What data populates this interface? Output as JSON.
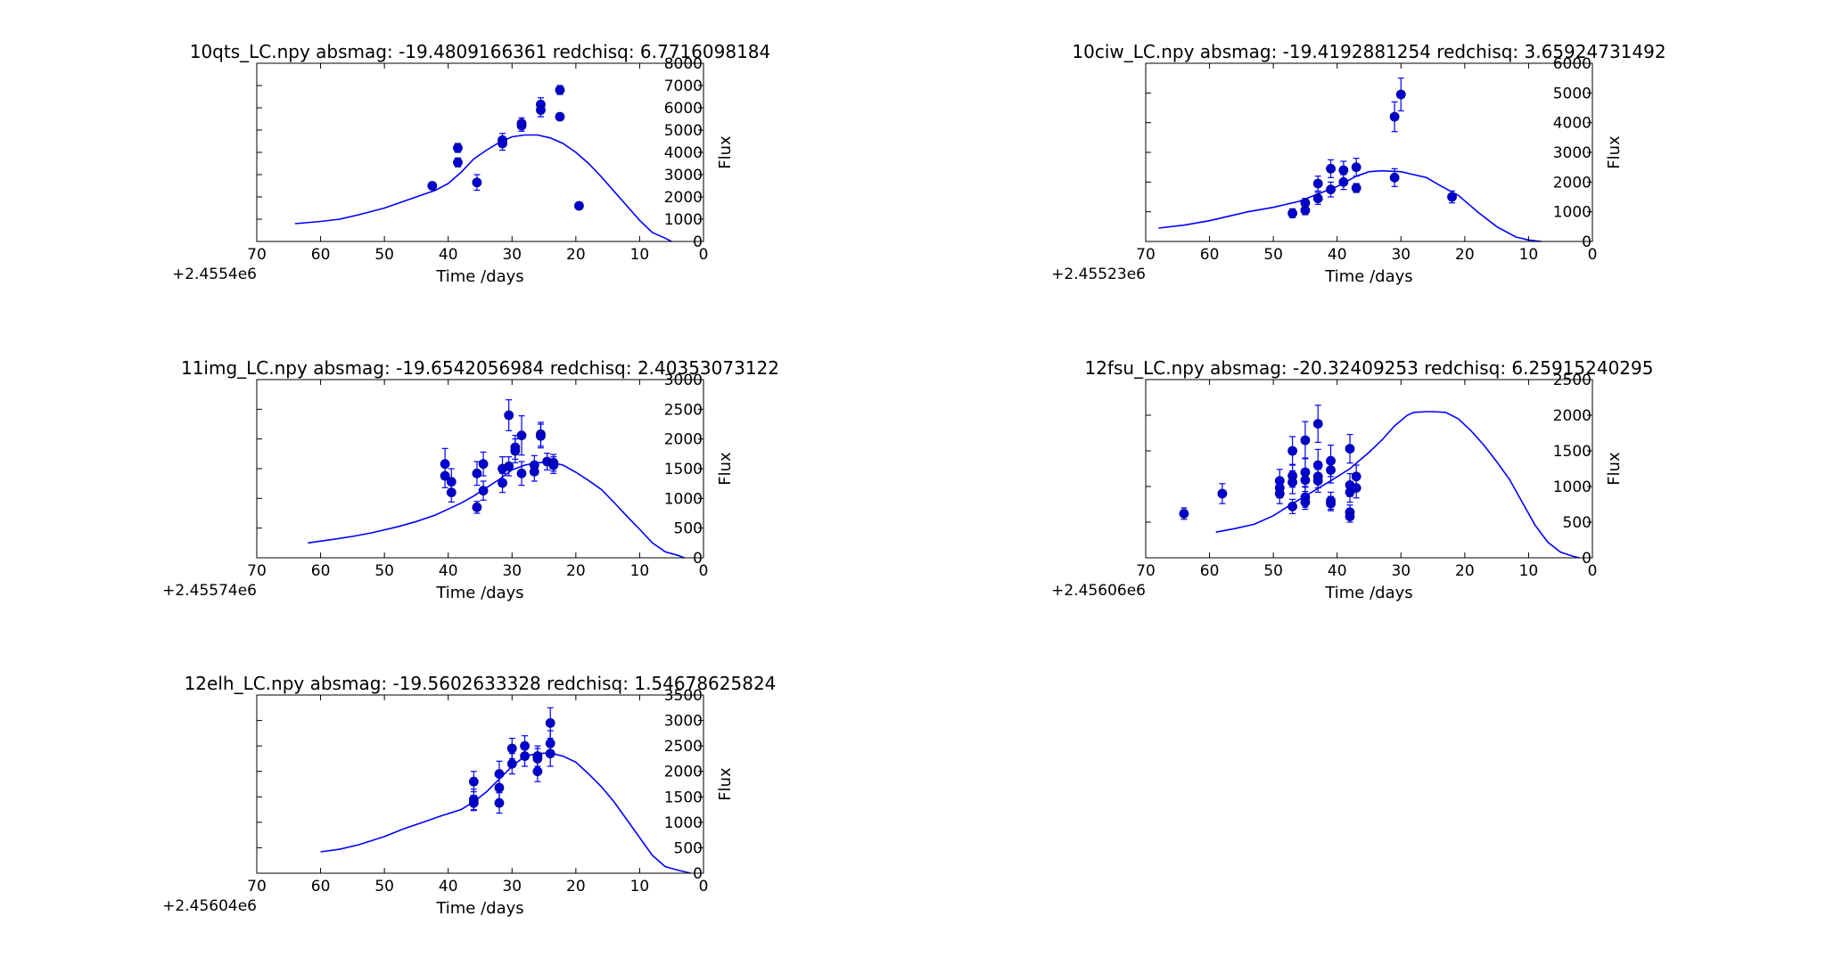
{
  "colors": {
    "line": "#0000ff",
    "marker": "#0000cc",
    "marker_edge": "#00008b",
    "axes": "#000000"
  },
  "chart_data": [
    {
      "type": "scatter",
      "title": "10qts_LC.npy absmag: -19.4809166361 redchisq: 6.7716098184",
      "xlabel": "Time /days",
      "ylabel": "Flux",
      "x_offset_label": "+2.4554e6",
      "xlim": [
        70,
        0
      ],
      "ylim": [
        0,
        8000
      ],
      "xticks": [
        "70",
        "60",
        "50",
        "40",
        "30",
        "20",
        "10",
        "0"
      ],
      "yticks": [
        "0",
        "1000",
        "2000",
        "3000",
        "4000",
        "5000",
        "6000",
        "7000",
        "8000"
      ],
      "observations": [
        {
          "x": 42.5,
          "y": 2500,
          "err": 150
        },
        {
          "x": 38.5,
          "y": 4200,
          "err": 200
        },
        {
          "x": 38.5,
          "y": 3550,
          "err": 200
        },
        {
          "x": 35.5,
          "y": 2650,
          "err": 350
        },
        {
          "x": 31.5,
          "y": 4550,
          "err": 300
        },
        {
          "x": 31.5,
          "y": 4400,
          "err": 300
        },
        {
          "x": 28.5,
          "y": 5200,
          "err": 250
        },
        {
          "x": 28.5,
          "y": 5300,
          "err": 250
        },
        {
          "x": 25.5,
          "y": 6150,
          "err": 300
        },
        {
          "x": 25.5,
          "y": 5900,
          "err": 300
        },
        {
          "x": 22.5,
          "y": 6800,
          "err": 200
        },
        {
          "x": 22.5,
          "y": 5600,
          "err": 150
        },
        {
          "x": 19.5,
          "y": 1600,
          "err": 100
        }
      ],
      "model": {
        "x": [
          64,
          60,
          57,
          54,
          50,
          47,
          45,
          42,
          40,
          38,
          36,
          34,
          32,
          30,
          28,
          26,
          24,
          22,
          20,
          18,
          16,
          14,
          12,
          10,
          8,
          6,
          5
        ],
        "y": [
          800,
          900,
          1000,
          1200,
          1500,
          1800,
          2000,
          2300,
          2600,
          3100,
          3700,
          4100,
          4450,
          4700,
          4780,
          4780,
          4650,
          4400,
          4000,
          3500,
          2900,
          2250,
          1600,
          950,
          400,
          150,
          0
        ]
      }
    },
    {
      "type": "scatter",
      "title": "10ciw_LC.npy absmag: -19.4192881254 redchisq: 3.65924731492",
      "xlabel": "Time /days",
      "ylabel": "Flux",
      "x_offset_label": "+2.45523e6",
      "xlim": [
        70,
        0
      ],
      "ylim": [
        0,
        6000
      ],
      "xticks": [
        "70",
        "60",
        "50",
        "40",
        "30",
        "20",
        "10",
        "0"
      ],
      "yticks": [
        "0",
        "1000",
        "2000",
        "3000",
        "4000",
        "5000",
        "6000"
      ],
      "observations": [
        {
          "x": 47,
          "y": 950,
          "err": 150
        },
        {
          "x": 45,
          "y": 1050,
          "err": 150
        },
        {
          "x": 45,
          "y": 1300,
          "err": 150
        },
        {
          "x": 43,
          "y": 1450,
          "err": 200
        },
        {
          "x": 43,
          "y": 1950,
          "err": 250
        },
        {
          "x": 41,
          "y": 1750,
          "err": 250
        },
        {
          "x": 41,
          "y": 2450,
          "err": 300
        },
        {
          "x": 39,
          "y": 2000,
          "err": 250
        },
        {
          "x": 39,
          "y": 2400,
          "err": 300
        },
        {
          "x": 37,
          "y": 1800,
          "err": 150
        },
        {
          "x": 37,
          "y": 2500,
          "err": 300
        },
        {
          "x": 31,
          "y": 4200,
          "err": 500
        },
        {
          "x": 31,
          "y": 2150,
          "err": 300
        },
        {
          "x": 30,
          "y": 4950,
          "err": 550
        },
        {
          "x": 22,
          "y": 1500,
          "err": 200
        }
      ],
      "model": {
        "x": [
          68,
          64,
          60,
          57,
          54,
          50,
          46,
          43,
          40,
          37,
          35,
          33,
          30,
          28,
          26,
          24,
          21,
          18,
          15,
          12,
          10,
          8
        ],
        "y": [
          450,
          550,
          700,
          850,
          1000,
          1150,
          1350,
          1600,
          1850,
          2200,
          2350,
          2380,
          2350,
          2250,
          2150,
          1900,
          1550,
          1000,
          500,
          150,
          50,
          0
        ]
      }
    },
    {
      "type": "scatter",
      "title": "11img_LC.npy absmag: -19.6542056984 redchisq: 2.40353073122",
      "xlabel": "Time /days",
      "ylabel": "Flux",
      "x_offset_label": "+2.45574e6",
      "xlim": [
        70,
        0
      ],
      "ylim": [
        0,
        3000
      ],
      "xticks": [
        "70",
        "60",
        "50",
        "40",
        "30",
        "20",
        "10",
        "0"
      ],
      "yticks": [
        "0",
        "500",
        "1000",
        "1500",
        "2000",
        "2500",
        "3000"
      ],
      "observations": [
        {
          "x": 40.5,
          "y": 1580,
          "err": 260
        },
        {
          "x": 40.5,
          "y": 1380,
          "err": 200
        },
        {
          "x": 39.5,
          "y": 1280,
          "err": 220
        },
        {
          "x": 39.5,
          "y": 1100,
          "err": 160
        },
        {
          "x": 35.5,
          "y": 1420,
          "err": 200
        },
        {
          "x": 35.5,
          "y": 850,
          "err": 100
        },
        {
          "x": 34.5,
          "y": 1580,
          "err": 200
        },
        {
          "x": 34.5,
          "y": 1130,
          "err": 160
        },
        {
          "x": 31.5,
          "y": 1260,
          "err": 160
        },
        {
          "x": 31.5,
          "y": 1500,
          "err": 200
        },
        {
          "x": 30.5,
          "y": 2400,
          "err": 260
        },
        {
          "x": 30.5,
          "y": 1540,
          "err": 160
        },
        {
          "x": 29.5,
          "y": 1860,
          "err": 200
        },
        {
          "x": 29.5,
          "y": 1800,
          "err": 200
        },
        {
          "x": 28.5,
          "y": 2060,
          "err": 330
        },
        {
          "x": 28.5,
          "y": 1420,
          "err": 200
        },
        {
          "x": 26.5,
          "y": 1560,
          "err": 160
        },
        {
          "x": 26.5,
          "y": 1450,
          "err": 160
        },
        {
          "x": 25.5,
          "y": 2080,
          "err": 200
        },
        {
          "x": 25.5,
          "y": 2050,
          "err": 200
        },
        {
          "x": 24.5,
          "y": 1620,
          "err": 140
        },
        {
          "x": 23.5,
          "y": 1600,
          "err": 140
        },
        {
          "x": 23.5,
          "y": 1560,
          "err": 140
        }
      ],
      "model": {
        "x": [
          62,
          58,
          55,
          52,
          48,
          45,
          42,
          40,
          38,
          36,
          34,
          32,
          30,
          28,
          26,
          24,
          22,
          20,
          18,
          16,
          14,
          12,
          10,
          8,
          6,
          4,
          3
        ],
        "y": [
          250,
          310,
          360,
          420,
          520,
          610,
          720,
          820,
          920,
          1040,
          1180,
          1320,
          1480,
          1560,
          1600,
          1610,
          1560,
          1440,
          1300,
          1150,
          930,
          700,
          480,
          250,
          100,
          40,
          0
        ]
      }
    },
    {
      "type": "scatter",
      "title": "12fsu_LC.npy absmag: -20.32409253 redchisq: 6.25915240295",
      "xlabel": "Time /days",
      "ylabel": "Flux",
      "x_offset_label": "+2.45606e6",
      "xlim": [
        70,
        0
      ],
      "ylim": [
        0,
        2500
      ],
      "xticks": [
        "70",
        "60",
        "50",
        "40",
        "30",
        "20",
        "10",
        "0"
      ],
      "yticks": [
        "0",
        "500",
        "1000",
        "1500",
        "2000",
        "2500"
      ],
      "observations": [
        {
          "x": 64,
          "y": 620,
          "err": 80
        },
        {
          "x": 58,
          "y": 900,
          "err": 140
        },
        {
          "x": 49,
          "y": 1080,
          "err": 160
        },
        {
          "x": 49,
          "y": 980,
          "err": 140
        },
        {
          "x": 49,
          "y": 900,
          "err": 140
        },
        {
          "x": 47,
          "y": 1500,
          "err": 200
        },
        {
          "x": 47,
          "y": 1150,
          "err": 160
        },
        {
          "x": 47,
          "y": 1060,
          "err": 160
        },
        {
          "x": 47,
          "y": 720,
          "err": 100
        },
        {
          "x": 45,
          "y": 1650,
          "err": 260
        },
        {
          "x": 45,
          "y": 1200,
          "err": 200
        },
        {
          "x": 45,
          "y": 1090,
          "err": 160
        },
        {
          "x": 45,
          "y": 850,
          "err": 140
        },
        {
          "x": 45,
          "y": 780,
          "err": 100
        },
        {
          "x": 43,
          "y": 1880,
          "err": 260
        },
        {
          "x": 43,
          "y": 1300,
          "err": 220
        },
        {
          "x": 43,
          "y": 1140,
          "err": 160
        },
        {
          "x": 43,
          "y": 1080,
          "err": 160
        },
        {
          "x": 41,
          "y": 1360,
          "err": 220
        },
        {
          "x": 41,
          "y": 1230,
          "err": 180
        },
        {
          "x": 41,
          "y": 800,
          "err": 120
        },
        {
          "x": 41,
          "y": 760,
          "err": 100
        },
        {
          "x": 38,
          "y": 1530,
          "err": 200
        },
        {
          "x": 38,
          "y": 1020,
          "err": 160
        },
        {
          "x": 38,
          "y": 920,
          "err": 140
        },
        {
          "x": 38,
          "y": 640,
          "err": 100
        },
        {
          "x": 38,
          "y": 580,
          "err": 80
        },
        {
          "x": 37,
          "y": 1140,
          "err": 160
        },
        {
          "x": 37,
          "y": 980,
          "err": 140
        }
      ],
      "model": {
        "x": [
          59,
          56,
          53,
          50,
          47,
          44,
          41,
          38,
          35,
          33,
          31,
          29,
          28,
          26,
          25,
          23,
          21,
          19,
          17,
          15,
          13,
          11,
          9,
          7,
          5,
          3,
          2
        ],
        "y": [
          360,
          410,
          470,
          590,
          760,
          920,
          1080,
          1250,
          1480,
          1650,
          1850,
          2000,
          2040,
          2050,
          2050,
          2040,
          1950,
          1780,
          1580,
          1350,
          1100,
          780,
          460,
          220,
          80,
          20,
          0
        ]
      }
    },
    {
      "type": "scatter",
      "title": "12elh_LC.npy absmag: -19.5602633328 redchisq: 1.54678625824",
      "xlabel": "Time /days",
      "ylabel": "Flux",
      "x_offset_label": "+2.45604e6",
      "xlim": [
        70,
        0
      ],
      "ylim": [
        0,
        3500
      ],
      "xticks": [
        "70",
        "60",
        "50",
        "40",
        "30",
        "20",
        "10",
        "0"
      ],
      "yticks": [
        "0",
        "500",
        "1000",
        "1500",
        "2000",
        "2500",
        "3000",
        "3500"
      ],
      "observations": [
        {
          "x": 36,
          "y": 1800,
          "err": 200
        },
        {
          "x": 36,
          "y": 1450,
          "err": 200
        },
        {
          "x": 36,
          "y": 1380,
          "err": 150
        },
        {
          "x": 32,
          "y": 1950,
          "err": 250
        },
        {
          "x": 32,
          "y": 1680,
          "err": 250
        },
        {
          "x": 32,
          "y": 1380,
          "err": 200
        },
        {
          "x": 30,
          "y": 2450,
          "err": 200
        },
        {
          "x": 30,
          "y": 2150,
          "err": 200
        },
        {
          "x": 28,
          "y": 2500,
          "err": 200
        },
        {
          "x": 28,
          "y": 2300,
          "err": 200
        },
        {
          "x": 26,
          "y": 2300,
          "err": 200
        },
        {
          "x": 26,
          "y": 2000,
          "err": 200
        },
        {
          "x": 26,
          "y": 2250,
          "err": 200
        },
        {
          "x": 24,
          "y": 2950,
          "err": 300
        },
        {
          "x": 24,
          "y": 2550,
          "err": 250
        },
        {
          "x": 24,
          "y": 2350,
          "err": 250
        }
      ],
      "model": {
        "x": [
          60,
          57,
          54,
          50,
          47,
          44,
          41,
          38,
          36,
          34,
          32,
          30,
          28,
          26,
          24,
          22,
          20,
          18,
          16,
          14,
          12,
          10,
          8,
          6,
          4,
          2
        ],
        "y": [
          420,
          470,
          560,
          720,
          870,
          1000,
          1130,
          1250,
          1400,
          1600,
          1850,
          2100,
          2300,
          2350,
          2360,
          2300,
          2180,
          1950,
          1700,
          1400,
          1050,
          700,
          350,
          130,
          60,
          0
        ]
      }
    }
  ]
}
